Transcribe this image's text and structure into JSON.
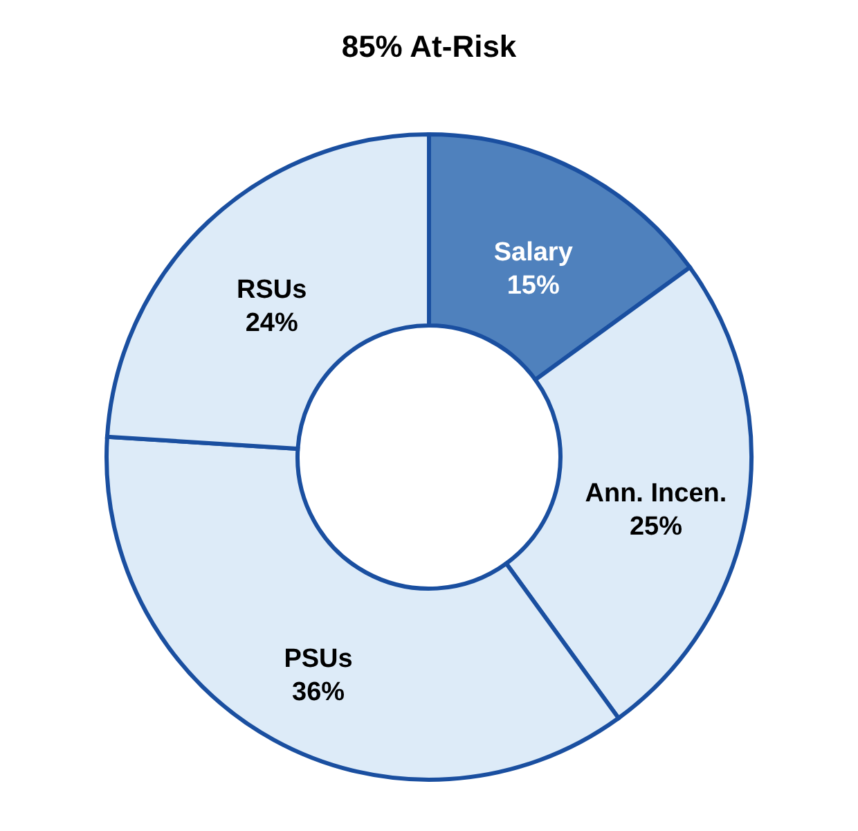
{
  "chart_data": {
    "type": "donut",
    "title": "85% At-Risk",
    "categories": [
      "Salary",
      "Ann. Incen.",
      "PSUs",
      "RSUs"
    ],
    "values": [
      15,
      25,
      36,
      24
    ],
    "value_labels": [
      "15%",
      "25%",
      "36%",
      "24%"
    ],
    "colors": [
      "#4f81bd",
      "#ddebf8",
      "#ddebf8",
      "#ddebf8"
    ],
    "legend": false
  }
}
